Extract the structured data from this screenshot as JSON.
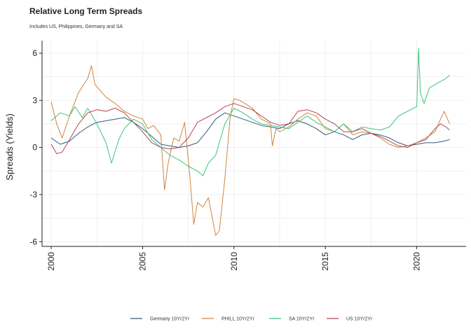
{
  "chart_data": {
    "type": "line",
    "title": "Relative Long Term Spreads",
    "subtitle": "Includes US, Philippines, Germany and SA",
    "xlabel": "",
    "ylabel": "Spreads (Yields)",
    "xlim": [
      1999.5,
      2022.7
    ],
    "ylim": [
      -6.3,
      6.8
    ],
    "xticks": [
      2000,
      2005,
      2010,
      2015,
      2020
    ],
    "xtick_labels": [
      "2000",
      "2005",
      "2010",
      "2015",
      "2020"
    ],
    "yticks": [
      -6,
      -3,
      0,
      3,
      6
    ],
    "ytick_labels": [
      "-6",
      "-3",
      "0",
      "3",
      "6"
    ],
    "grid": true,
    "legend_position": "bottom",
    "series": [
      {
        "name": "Germany  10Yr2Yr",
        "color": "#2e5a87",
        "x": [
          2000,
          2000.5,
          2001,
          2001.5,
          2002,
          2002.5,
          2003,
          2003.5,
          2004,
          2004.5,
          2005,
          2005.5,
          2006,
          2006.5,
          2007,
          2007.5,
          2008,
          2008.5,
          2009,
          2009.5,
          2010,
          2010.5,
          2011,
          2011.5,
          2012,
          2012.5,
          2013,
          2013.5,
          2014,
          2014.5,
          2015,
          2015.5,
          2016,
          2016.5,
          2017,
          2017.5,
          2018,
          2018.5,
          2019,
          2019.5,
          2020,
          2020.5,
          2021,
          2021.5,
          2021.8
        ],
        "y": [
          0.6,
          0.2,
          0.4,
          0.9,
          1.3,
          1.6,
          1.7,
          1.8,
          1.9,
          1.6,
          1.2,
          0.7,
          0.2,
          0.1,
          0.0,
          0.1,
          0.3,
          1.0,
          1.8,
          2.2,
          2.0,
          1.8,
          1.6,
          1.4,
          1.3,
          1.2,
          1.5,
          1.7,
          1.5,
          1.2,
          0.8,
          1.0,
          0.8,
          0.5,
          0.8,
          0.9,
          0.8,
          0.6,
          0.3,
          0.1,
          0.2,
          0.3,
          0.3,
          0.4,
          0.5
        ]
      },
      {
        "name": "PHILL  10Yr2Yr",
        "color": "#d0843c",
        "x": [
          2000,
          2000.3,
          2000.6,
          2001,
          2001.5,
          2002,
          2002.2,
          2002.4,
          2002.7,
          2003,
          2003.5,
          2004,
          2004.5,
          2005,
          2005.3,
          2005.6,
          2006,
          2006.2,
          2006.4,
          2006.7,
          2007,
          2007.3,
          2007.6,
          2007.8,
          2008,
          2008.3,
          2008.6,
          2009,
          2009.2,
          2009.5,
          2009.8,
          2010,
          2010.3,
          2010.6,
          2011,
          2011.5,
          2012,
          2012.1,
          2012.3,
          2012.5,
          2013,
          2013.5,
          2014,
          2014.5,
          2015,
          2015.5,
          2016,
          2016.5,
          2017,
          2017.5,
          2018,
          2018.5,
          2019,
          2019.5,
          2020,
          2020.5,
          2021,
          2021.3,
          2021.5,
          2021.8
        ],
        "y": [
          2.9,
          1.5,
          0.6,
          2.0,
          3.5,
          4.4,
          5.2,
          4.0,
          3.6,
          3.2,
          2.8,
          2.3,
          2.0,
          1.8,
          1.2,
          1.4,
          0.8,
          -2.7,
          -1.0,
          0.6,
          0.4,
          1.6,
          -2.0,
          -4.9,
          -3.5,
          -3.8,
          -3.2,
          -5.6,
          -5.3,
          -2.0,
          2.0,
          3.1,
          3.0,
          2.8,
          2.5,
          1.8,
          1.5,
          0.1,
          1.2,
          1.0,
          1.3,
          1.8,
          2.2,
          2.0,
          1.2,
          1.0,
          1.5,
          0.8,
          1.0,
          0.9,
          0.6,
          0.2,
          0.0,
          0.1,
          0.3,
          0.6,
          1.0,
          1.8,
          2.3,
          1.5
        ]
      },
      {
        "name": "SA  10Yr2Yr",
        "color": "#3cc47c",
        "x": [
          2000,
          2000.5,
          2001,
          2001.3,
          2001.7,
          2002,
          2002.5,
          2003,
          2003.3,
          2003.7,
          2004,
          2004.5,
          2005,
          2005.5,
          2006,
          2006.5,
          2007,
          2007.5,
          2008,
          2008.3,
          2008.6,
          2009,
          2009.5,
          2010,
          2010.5,
          2011,
          2011.5,
          2012,
          2012.5,
          2013,
          2013.5,
          2014,
          2014.5,
          2015,
          2015.5,
          2016,
          2016.5,
          2017,
          2017.5,
          2018,
          2018.5,
          2019,
          2019.5,
          2020,
          2020.1,
          2020.2,
          2020.4,
          2020.7,
          2021,
          2021.3,
          2021.6,
          2021.8
        ],
        "y": [
          1.7,
          2.2,
          2.0,
          2.6,
          1.9,
          2.5,
          1.5,
          0.3,
          -1.0,
          0.5,
          1.2,
          1.8,
          1.5,
          0.5,
          0.0,
          -0.5,
          -0.8,
          -1.2,
          -1.5,
          -1.8,
          -1.0,
          -0.5,
          1.5,
          2.5,
          2.2,
          1.8,
          1.5,
          1.4,
          1.3,
          1.2,
          1.6,
          2.0,
          1.6,
          1.3,
          1.0,
          1.5,
          1.0,
          1.3,
          1.2,
          1.1,
          1.3,
          2.0,
          2.3,
          2.6,
          6.3,
          3.5,
          2.8,
          3.8,
          4.0,
          4.2,
          4.4,
          4.6
        ]
      },
      {
        "name": "US  10Yr2Yr",
        "color": "#b5464d",
        "x": [
          2000,
          2000.3,
          2000.6,
          2001,
          2001.5,
          2002,
          2002.5,
          2003,
          2003.5,
          2004,
          2004.5,
          2005,
          2005.5,
          2006,
          2006.5,
          2007,
          2007.5,
          2008,
          2008.5,
          2009,
          2009.5,
          2010,
          2010.5,
          2011,
          2011.5,
          2012,
          2012.5,
          2013,
          2013.5,
          2014,
          2014.5,
          2015,
          2015.5,
          2016,
          2016.5,
          2017,
          2017.5,
          2018,
          2018.5,
          2019,
          2019.5,
          2020,
          2020.5,
          2021,
          2021.3,
          2021.6,
          2021.8
        ],
        "y": [
          0.2,
          -0.4,
          -0.3,
          0.5,
          1.5,
          2.2,
          2.4,
          2.3,
          2.5,
          2.2,
          1.6,
          1.0,
          0.3,
          0.0,
          -0.1,
          0.0,
          0.6,
          1.6,
          1.9,
          2.2,
          2.6,
          2.8,
          2.6,
          2.4,
          2.0,
          1.6,
          1.4,
          1.5,
          2.3,
          2.4,
          2.2,
          1.8,
          1.5,
          1.0,
          1.0,
          1.2,
          0.9,
          0.7,
          0.4,
          0.1,
          0.0,
          0.3,
          0.5,
          1.2,
          1.5,
          1.3,
          1.1
        ]
      }
    ]
  }
}
